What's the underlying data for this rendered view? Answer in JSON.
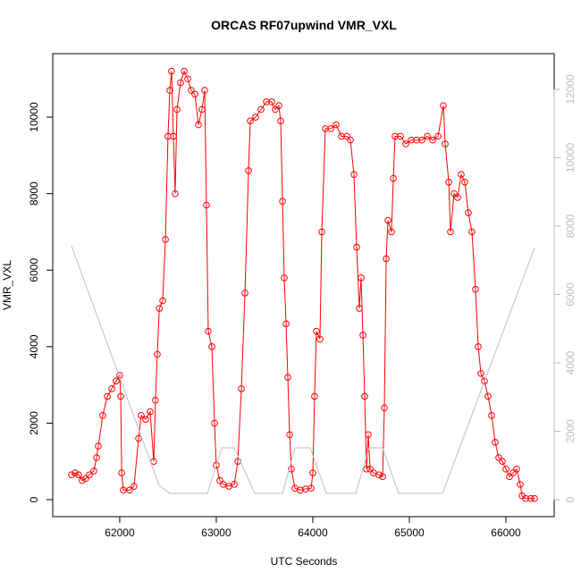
{
  "chart_data": {
    "type": "line",
    "title": "ORCAS RF07upwind VMR_VXL",
    "x_label": "UTC Seconds",
    "y_label": "VMR_VXL",
    "xlim": [
      61306,
      66500
    ],
    "xticks": [
      62000,
      63000,
      64000,
      65000,
      66000
    ],
    "ylim": [
      -444,
      11660
    ],
    "yticks": [
      0,
      2000,
      4000,
      6000,
      8000,
      10000
    ],
    "y2lim": [
      -497,
      13046
    ],
    "y2ticks": [
      0,
      2000,
      4000,
      6000,
      8000,
      10000,
      12000
    ],
    "y2_color": "#bebebe",
    "series": [
      {
        "color": "#ff0000",
        "marker": "circle",
        "x": [
          61500,
          61537,
          61574,
          61611,
          61648,
          61685,
          61732,
          61760,
          61778,
          61824,
          61871,
          61917,
          61963,
          62000,
          62010,
          62020,
          62037,
          62102,
          62148,
          62195,
          62222,
          62269,
          62315,
          62352,
          62370,
          62389,
          62410,
          62445,
          62473,
          62500,
          62519,
          62537,
          62556,
          62574,
          62593,
          62630,
          62667,
          62704,
          62741,
          62778,
          62815,
          62852,
          62880,
          62898,
          62917,
          62954,
          62982,
          63000,
          63037,
          63074,
          63130,
          63186,
          63223,
          63260,
          63297,
          63334,
          63352,
          63408,
          63463,
          63519,
          63574,
          63611,
          63648,
          63667,
          63686,
          63704,
          63723,
          63741,
          63760,
          63778,
          63815,
          63871,
          63926,
          63982,
          64000,
          64018,
          64037,
          64074,
          64093,
          64130,
          64186,
          64241,
          64297,
          64352,
          64389,
          64426,
          64454,
          64482,
          64500,
          64519,
          64537,
          64556,
          64574,
          64593,
          64630,
          64685,
          64723,
          64741,
          64760,
          64778,
          64815,
          64834,
          64852,
          64908,
          64963,
          65019,
          65074,
          65130,
          65186,
          65241,
          65297,
          65352,
          65371,
          65408,
          65426,
          65463,
          65500,
          65537,
          65574,
          65611,
          65648,
          65685,
          65713,
          65741,
          65778,
          65815,
          65852,
          65889,
          65926,
          65963,
          66000,
          66037,
          66074,
          66111,
          66148,
          66167,
          66204,
          66259,
          66297
        ],
        "values": [
          650,
          700,
          650,
          500,
          550,
          650,
          750,
          1100,
          1400,
          2200,
          2700,
          2900,
          3100,
          3250,
          2700,
          700,
          250,
          250,
          350,
          1600,
          2200,
          2100,
          2300,
          1000,
          2600,
          3800,
          5000,
          5200,
          6800,
          9500,
          10700,
          11200,
          9500,
          8000,
          10200,
          10900,
          11200,
          11000,
          10700,
          10600,
          9800,
          10200,
          10700,
          7700,
          4400,
          4000,
          2000,
          900,
          500,
          400,
          350,
          400,
          1000,
          2900,
          5400,
          8600,
          9900,
          10000,
          10200,
          10400,
          10400,
          10200,
          10300,
          9900,
          7800,
          5800,
          4600,
          3200,
          1700,
          800,
          300,
          250,
          280,
          300,
          700,
          2700,
          4400,
          4200,
          7000,
          9700,
          9700,
          9800,
          9500,
          9500,
          9400,
          8500,
          6600,
          5000,
          5800,
          4300,
          2700,
          800,
          1700,
          800,
          700,
          650,
          600,
          2400,
          6300,
          7300,
          7000,
          8400,
          9500,
          9500,
          9300,
          9400,
          9400,
          9400,
          9500,
          9400,
          9500,
          10300,
          9300,
          8300,
          7000,
          8000,
          7900,
          8500,
          8300,
          7500,
          7000,
          5500,
          4000,
          3300,
          3100,
          2700,
          2200,
          1500,
          1100,
          1000,
          800,
          600,
          700,
          800,
          400,
          100,
          30,
          30,
          30
        ]
      },
      {
        "color": "#bebebe",
        "axis": "y2",
        "x": [
          61500,
          62408,
          62519,
          62908,
          63056,
          63186,
          63399,
          63686,
          63815,
          63973,
          64139,
          64445,
          64584,
          64723,
          64889,
          65343,
          66297
        ],
        "values": [
          7425,
          418,
          183,
          183,
          1516,
          1516,
          183,
          183,
          1516,
          1516,
          183,
          183,
          1516,
          1516,
          183,
          183,
          7373
        ]
      }
    ]
  }
}
